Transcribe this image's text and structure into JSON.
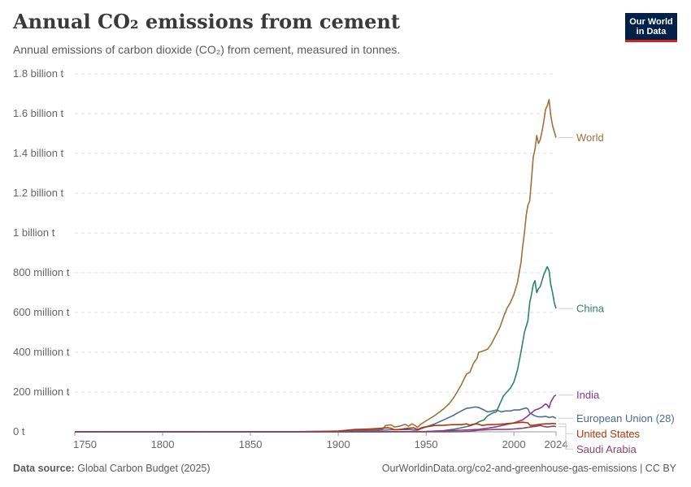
{
  "header": {
    "title": "Annual CO₂ emissions from cement",
    "subtitle": "Annual emissions of carbon dioxide (CO₂) from cement, measured in tonnes.",
    "logo_line1": "Our World",
    "logo_line2": "in Data"
  },
  "footer": {
    "source_label": "Data source:",
    "source_value": "Global Carbon Budget (2025)",
    "url": "OurWorldinData.org/co2-and-greenhouse-gas-emissions | CC BY"
  },
  "chart_data": {
    "type": "line",
    "xlim": [
      1750,
      2024
    ],
    "ylim": [
      0,
      1800000000
    ],
    "grid": true,
    "legend": "right",
    "x_ticks": [
      {
        "value": 1750,
        "label": "1750"
      },
      {
        "value": 1800,
        "label": "1800"
      },
      {
        "value": 1850,
        "label": "1850"
      },
      {
        "value": 1900,
        "label": "1900"
      },
      {
        "value": 1950,
        "label": "1950"
      },
      {
        "value": 2000,
        "label": "2000"
      },
      {
        "value": 2024,
        "label": "2024"
      }
    ],
    "y_ticks": [
      {
        "value": 0,
        "label": "0 t"
      },
      {
        "value": 200000000,
        "label": "200 million t"
      },
      {
        "value": 400000000,
        "label": "400 million t"
      },
      {
        "value": 600000000,
        "label": "600 million t"
      },
      {
        "value": 800000000,
        "label": "800 million t"
      },
      {
        "value": 1000000000,
        "label": "1 billion t"
      },
      {
        "value": 1200000000,
        "label": "1.2 billion t"
      },
      {
        "value": 1400000000,
        "label": "1.4 billion t"
      },
      {
        "value": 1600000000,
        "label": "1.6 billion t"
      },
      {
        "value": 1800000000,
        "label": "1.8 billion t"
      }
    ],
    "series": [
      {
        "name": "World",
        "color": "#a2703b",
        "points": [
          [
            1750,
            0
          ],
          [
            1880,
            1000000
          ],
          [
            1900,
            2000000
          ],
          [
            1915,
            8000000
          ],
          [
            1925,
            12000000
          ],
          [
            1927,
            32000000
          ],
          [
            1930,
            35000000
          ],
          [
            1932,
            24000000
          ],
          [
            1935,
            28000000
          ],
          [
            1938,
            38000000
          ],
          [
            1940,
            28000000
          ],
          [
            1942,
            40000000
          ],
          [
            1944,
            30000000
          ],
          [
            1945,
            22000000
          ],
          [
            1947,
            38000000
          ],
          [
            1950,
            55000000
          ],
          [
            1955,
            82000000
          ],
          [
            1960,
            115000000
          ],
          [
            1963,
            140000000
          ],
          [
            1966,
            175000000
          ],
          [
            1970,
            235000000
          ],
          [
            1973,
            290000000
          ],
          [
            1975,
            300000000
          ],
          [
            1977,
            345000000
          ],
          [
            1979,
            370000000
          ],
          [
            1980,
            400000000
          ],
          [
            1982,
            405000000
          ],
          [
            1985,
            415000000
          ],
          [
            1987,
            440000000
          ],
          [
            1990,
            490000000
          ],
          [
            1992,
            525000000
          ],
          [
            1994,
            575000000
          ],
          [
            1996,
            620000000
          ],
          [
            1998,
            650000000
          ],
          [
            2000,
            690000000
          ],
          [
            2002,
            750000000
          ],
          [
            2004,
            850000000
          ],
          [
            2005,
            930000000
          ],
          [
            2006,
            1000000000
          ],
          [
            2007,
            1090000000
          ],
          [
            2008,
            1140000000
          ],
          [
            2009,
            1160000000
          ],
          [
            2010,
            1270000000
          ],
          [
            2011,
            1380000000
          ],
          [
            2012,
            1420000000
          ],
          [
            2013,
            1490000000
          ],
          [
            2014,
            1450000000
          ],
          [
            2015,
            1470000000
          ],
          [
            2016,
            1510000000
          ],
          [
            2017,
            1560000000
          ],
          [
            2018,
            1620000000
          ],
          [
            2019,
            1640000000
          ],
          [
            2020,
            1670000000
          ],
          [
            2021,
            1590000000
          ],
          [
            2022,
            1540000000
          ],
          [
            2023,
            1510000000
          ],
          [
            2024,
            1480000000
          ]
        ]
      },
      {
        "name": "China",
        "color": "#2c8465",
        "points": [
          [
            1750,
            0
          ],
          [
            1920,
            0
          ],
          [
            1950,
            1000000
          ],
          [
            1960,
            6000000
          ],
          [
            1965,
            12000000
          ],
          [
            1970,
            20000000
          ],
          [
            1975,
            30000000
          ],
          [
            1978,
            40000000
          ],
          [
            1980,
            50000000
          ],
          [
            1983,
            60000000
          ],
          [
            1985,
            80000000
          ],
          [
            1988,
            95000000
          ],
          [
            1990,
            100000000
          ],
          [
            1992,
            140000000
          ],
          [
            1994,
            180000000
          ],
          [
            1996,
            200000000
          ],
          [
            1998,
            220000000
          ],
          [
            2000,
            250000000
          ],
          [
            2002,
            310000000
          ],
          [
            2004,
            400000000
          ],
          [
            2006,
            500000000
          ],
          [
            2007,
            530000000
          ],
          [
            2008,
            560000000
          ],
          [
            2009,
            650000000
          ],
          [
            2010,
            690000000
          ],
          [
            2011,
            740000000
          ],
          [
            2012,
            760000000
          ],
          [
            2013,
            700000000
          ],
          [
            2014,
            720000000
          ],
          [
            2015,
            730000000
          ],
          [
            2016,
            760000000
          ],
          [
            2017,
            790000000
          ],
          [
            2018,
            810000000
          ],
          [
            2019,
            830000000
          ],
          [
            2020,
            810000000
          ],
          [
            2021,
            740000000
          ],
          [
            2022,
            700000000
          ],
          [
            2023,
            650000000
          ],
          [
            2024,
            620000000
          ]
        ]
      },
      {
        "name": "India",
        "color": "#883997",
        "points": [
          [
            1750,
            0
          ],
          [
            1920,
            0
          ],
          [
            1950,
            2000000
          ],
          [
            1960,
            5000000
          ],
          [
            1970,
            8000000
          ],
          [
            1980,
            12000000
          ],
          [
            1985,
            18000000
          ],
          [
            1990,
            25000000
          ],
          [
            1995,
            35000000
          ],
          [
            2000,
            45000000
          ],
          [
            2005,
            60000000
          ],
          [
            2008,
            80000000
          ],
          [
            2010,
            95000000
          ],
          [
            2012,
            110000000
          ],
          [
            2014,
            115000000
          ],
          [
            2016,
            125000000
          ],
          [
            2018,
            140000000
          ],
          [
            2019,
            135000000
          ],
          [
            2020,
            120000000
          ],
          [
            2021,
            150000000
          ],
          [
            2022,
            165000000
          ],
          [
            2023,
            180000000
          ],
          [
            2024,
            185000000
          ]
        ]
      },
      {
        "name": "European Union (28)",
        "color": "#4c6a9c",
        "points": [
          [
            1750,
            0
          ],
          [
            1880,
            1000000
          ],
          [
            1900,
            3000000
          ],
          [
            1920,
            6000000
          ],
          [
            1930,
            10000000
          ],
          [
            1940,
            12000000
          ],
          [
            1945,
            8000000
          ],
          [
            1950,
            25000000
          ],
          [
            1955,
            40000000
          ],
          [
            1960,
            60000000
          ],
          [
            1965,
            80000000
          ],
          [
            1970,
            105000000
          ],
          [
            1973,
            118000000
          ],
          [
            1975,
            120000000
          ],
          [
            1978,
            125000000
          ],
          [
            1980,
            122000000
          ],
          [
            1983,
            110000000
          ],
          [
            1985,
            100000000
          ],
          [
            1988,
            105000000
          ],
          [
            1990,
            110000000
          ],
          [
            1993,
            100000000
          ],
          [
            1995,
            105000000
          ],
          [
            1998,
            105000000
          ],
          [
            2000,
            110000000
          ],
          [
            2003,
            110000000
          ],
          [
            2005,
            115000000
          ],
          [
            2007,
            120000000
          ],
          [
            2008,
            115000000
          ],
          [
            2009,
            95000000
          ],
          [
            2010,
            90000000
          ],
          [
            2012,
            80000000
          ],
          [
            2014,
            75000000
          ],
          [
            2016,
            75000000
          ],
          [
            2018,
            78000000
          ],
          [
            2020,
            72000000
          ],
          [
            2022,
            76000000
          ],
          [
            2024,
            68000000
          ]
        ]
      },
      {
        "name": "United States",
        "color": "#b13507",
        "points": [
          [
            1750,
            0
          ],
          [
            1880,
            1000000
          ],
          [
            1890,
            2000000
          ],
          [
            1900,
            4000000
          ],
          [
            1905,
            8000000
          ],
          [
            1910,
            12000000
          ],
          [
            1915,
            13000000
          ],
          [
            1920,
            15000000
          ],
          [
            1925,
            18000000
          ],
          [
            1928,
            20000000
          ],
          [
            1930,
            18000000
          ],
          [
            1932,
            10000000
          ],
          [
            1935,
            12000000
          ],
          [
            1940,
            18000000
          ],
          [
            1943,
            20000000
          ],
          [
            1945,
            12000000
          ],
          [
            1948,
            22000000
          ],
          [
            1950,
            25000000
          ],
          [
            1955,
            32000000
          ],
          [
            1960,
            33000000
          ],
          [
            1965,
            36000000
          ],
          [
            1970,
            36000000
          ],
          [
            1973,
            40000000
          ],
          [
            1975,
            34000000
          ],
          [
            1978,
            40000000
          ],
          [
            1980,
            38000000
          ],
          [
            1982,
            32000000
          ],
          [
            1985,
            36000000
          ],
          [
            1990,
            37000000
          ],
          [
            1995,
            40000000
          ],
          [
            2000,
            44000000
          ],
          [
            2005,
            48000000
          ],
          [
            2008,
            45000000
          ],
          [
            2009,
            34000000
          ],
          [
            2010,
            32000000
          ],
          [
            2012,
            34000000
          ],
          [
            2015,
            38000000
          ],
          [
            2018,
            40000000
          ],
          [
            2020,
            40000000
          ],
          [
            2022,
            42000000
          ],
          [
            2024,
            40000000
          ]
        ]
      },
      {
        "name": "Saudi Arabia",
        "color": "#8c4569",
        "points": [
          [
            1750,
            0
          ],
          [
            1960,
            0
          ],
          [
            1970,
            1000000
          ],
          [
            1975,
            3000000
          ],
          [
            1980,
            8000000
          ],
          [
            1985,
            10000000
          ],
          [
            1990,
            12000000
          ],
          [
            1995,
            12000000
          ],
          [
            2000,
            14000000
          ],
          [
            2005,
            18000000
          ],
          [
            2008,
            22000000
          ],
          [
            2010,
            25000000
          ],
          [
            2013,
            28000000
          ],
          [
            2015,
            32000000
          ],
          [
            2017,
            27000000
          ],
          [
            2019,
            24000000
          ],
          [
            2021,
            27000000
          ],
          [
            2023,
            28000000
          ],
          [
            2024,
            26000000
          ]
        ]
      }
    ]
  }
}
